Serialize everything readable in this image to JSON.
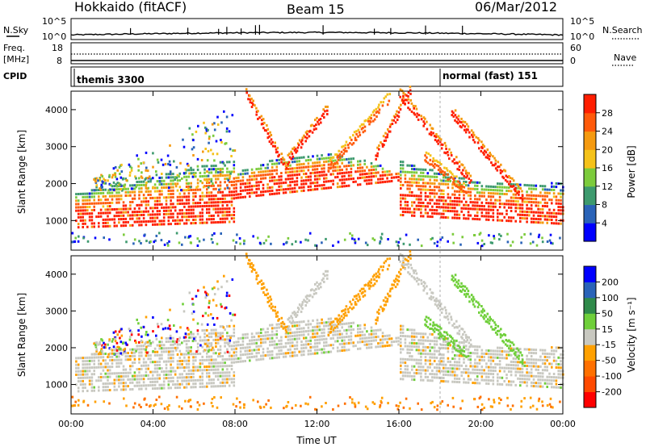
{
  "header": {
    "station": "Hokkaido (fitACF)",
    "beam": "Beam 15",
    "date": "06/Mar/2012"
  },
  "noise_panel": {
    "left_label": "N.Sky",
    "right_label": "N.Search",
    "left_ticks": [
      "10^5",
      "10^0"
    ],
    "right_ticks": [
      "10^5",
      "10^0"
    ]
  },
  "freq_panel": {
    "left_label_1": "Freq.",
    "left_label_2": "[MHz]",
    "left_ticks": [
      "18",
      "8"
    ],
    "right_label": "Nave",
    "right_ticks": [
      "60",
      "0"
    ]
  },
  "cpid_panel": {
    "label": "CPID",
    "modes": [
      {
        "name": "themis 3300",
        "start_hour": 0
      },
      {
        "name": "normal (fast) 151",
        "start_hour": 18
      }
    ]
  },
  "colors": {
    "power": [
      "#0000ff",
      "#2a63b8",
      "#3d9a6e",
      "#7ccb3c",
      "#f5c21a",
      "#f59a10",
      "#ff5a0a",
      "#ff1e00"
    ],
    "velocity": [
      "#0000ff",
      "#2a63b8",
      "#2f8a4a",
      "#6fcf3a",
      "#c8c8c0",
      "#ffa000",
      "#ff7000",
      "#ff4a00",
      "#ff0000"
    ],
    "noise_line": "#000000"
  },
  "chart_data": [
    {
      "type": "heatmap",
      "panel": "power",
      "ylabel": "Slant Range [km]",
      "ylim": [
        200,
        4500
      ],
      "yticks": [
        "1000",
        "2000",
        "3000",
        "4000"
      ],
      "x_ticks": [
        "00:00",
        "04:00",
        "08:00",
        "12:00",
        "16:00",
        "20:00",
        "00:00"
      ],
      "xlim_hours": [
        0,
        24
      ],
      "colorbar_label": "Power [dB]",
      "colorbar_ticks": [
        "28",
        "24",
        "20",
        "16",
        "12",
        "8",
        "4"
      ],
      "colorbar_range": [
        0,
        32
      ]
    },
    {
      "type": "heatmap",
      "panel": "velocity",
      "ylabel": "Slant Range [km]",
      "ylim": [
        200,
        4500
      ],
      "yticks": [
        "1000",
        "2000",
        "3000",
        "4000"
      ],
      "x_ticks": [
        "00:00",
        "04:00",
        "08:00",
        "12:00",
        "16:00",
        "20:00",
        "00:00"
      ],
      "xlabel": "Time UT",
      "colorbar_label": "Velocity [m s⁻¹]",
      "colorbar_ticks": [
        "200",
        "100",
        "50",
        "15",
        "-15",
        "-50",
        "-100",
        "-200"
      ]
    }
  ]
}
